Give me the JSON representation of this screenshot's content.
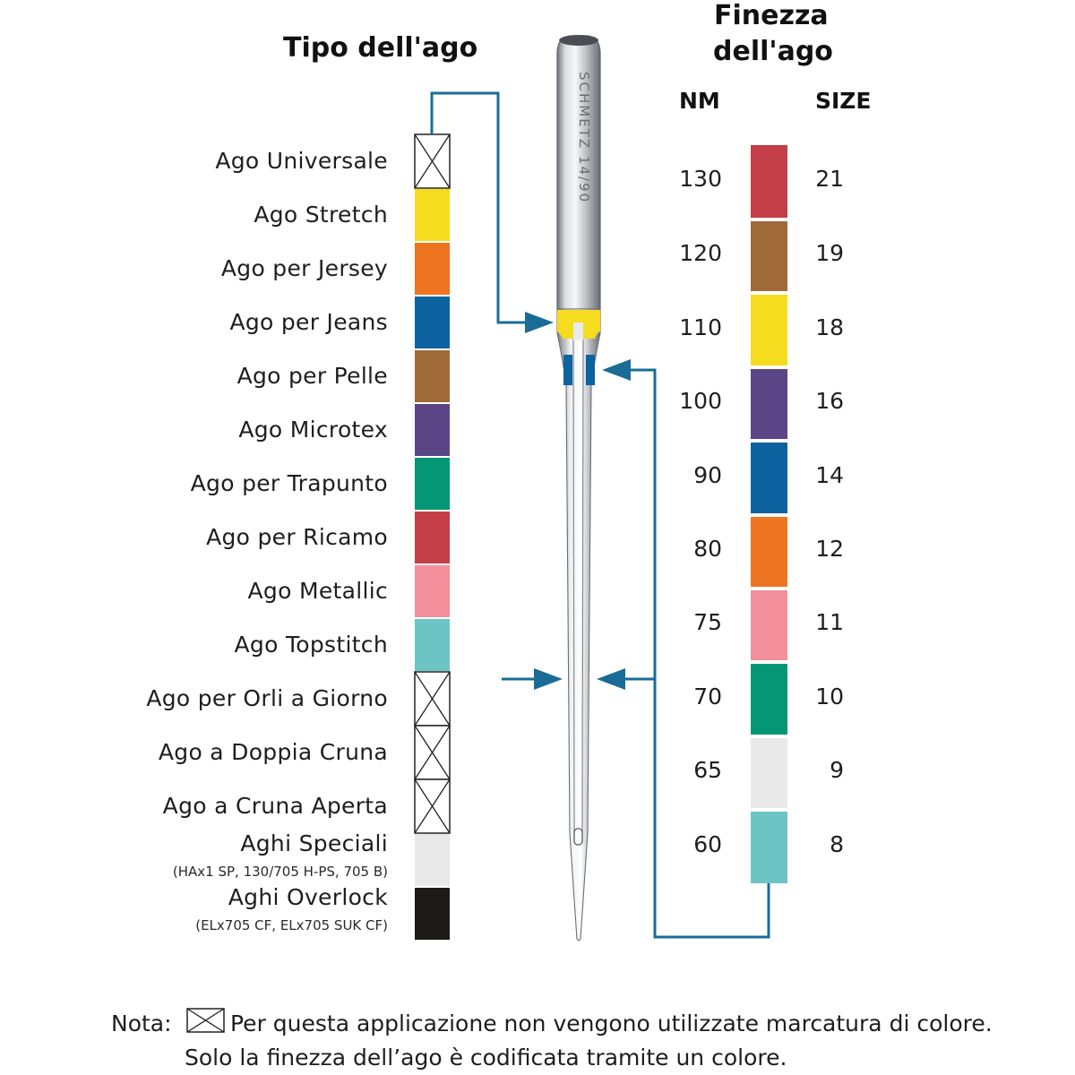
{
  "headings": {
    "type": "Tipo dell'ago",
    "fineness_line1": "Finezza",
    "fineness_line2": "dell'ago",
    "nm": "NM",
    "size": "SIZE"
  },
  "needle_text": "SCHMETZ 14/90",
  "needle_types": [
    {
      "label": "Ago Universale",
      "sub": "",
      "color": "none"
    },
    {
      "label": "Ago Stretch",
      "sub": "",
      "color": "#f5dc1e"
    },
    {
      "label": "Ago per Jersey",
      "sub": "",
      "color": "#ee7422"
    },
    {
      "label": "Ago per Jeans",
      "sub": "",
      "color": "#0d62a0"
    },
    {
      "label": "Ago per Pelle",
      "sub": "",
      "color": "#a06a38"
    },
    {
      "label": "Ago Microtex",
      "sub": "",
      "color": "#5b4587"
    },
    {
      "label": "Ago per Trapunto",
      "sub": "",
      "color": "#049675"
    },
    {
      "label": "Ago per Ricamo",
      "sub": "",
      "color": "#c33e47"
    },
    {
      "label": "Ago Metallic",
      "sub": "",
      "color": "#f28f9b"
    },
    {
      "label": "Ago Topstitch",
      "sub": "",
      "color": "#6cc5c4"
    },
    {
      "label": "Ago per Orli a Giorno",
      "sub": "",
      "color": "none"
    },
    {
      "label": "Ago a Doppia Cruna",
      "sub": "",
      "color": "none"
    },
    {
      "label": "Ago a Cruna Aperta",
      "sub": "",
      "color": "none"
    },
    {
      "label": "Aghi Speciali",
      "sub": "(HAx1 SP, 130/705 H-PS, 705 B)",
      "color": "#e9e9e9"
    },
    {
      "label": "Aghi Overlock",
      "sub": "(ELx705 CF, ELx705 SUK CF)",
      "color": "#1c1a17"
    }
  ],
  "sizes": [
    {
      "nm": "130",
      "size": "21",
      "color": "#c33e47"
    },
    {
      "nm": "120",
      "size": "19",
      "color": "#a06a38"
    },
    {
      "nm": "110",
      "size": "18",
      "color": "#f5dc1e"
    },
    {
      "nm": "100",
      "size": "16",
      "color": "#5b4587"
    },
    {
      "nm": "90",
      "size": "14",
      "color": "#0d62a0"
    },
    {
      "nm": "80",
      "size": "12",
      "color": "#ee7422"
    },
    {
      "nm": "75",
      "size": "11",
      "color": "#f28f9b"
    },
    {
      "nm": "70",
      "size": "10",
      "color": "#049675"
    },
    {
      "nm": "65",
      "size": "9",
      "color": "#e9e9e9"
    },
    {
      "nm": "60",
      "size": "8",
      "color": "#6cc5c4"
    }
  ],
  "note": {
    "prefix": "Nota:",
    "line1": "Per questa applicazione non vengono utilizzate marcatura di colore.",
    "line2": "Solo la finezza dell’ago è codificata tramite un colore."
  },
  "arrow_color": "#1a6c97",
  "needle_type_band_color": "#f5dc1e",
  "needle_size_band_color": "#0d62a0"
}
